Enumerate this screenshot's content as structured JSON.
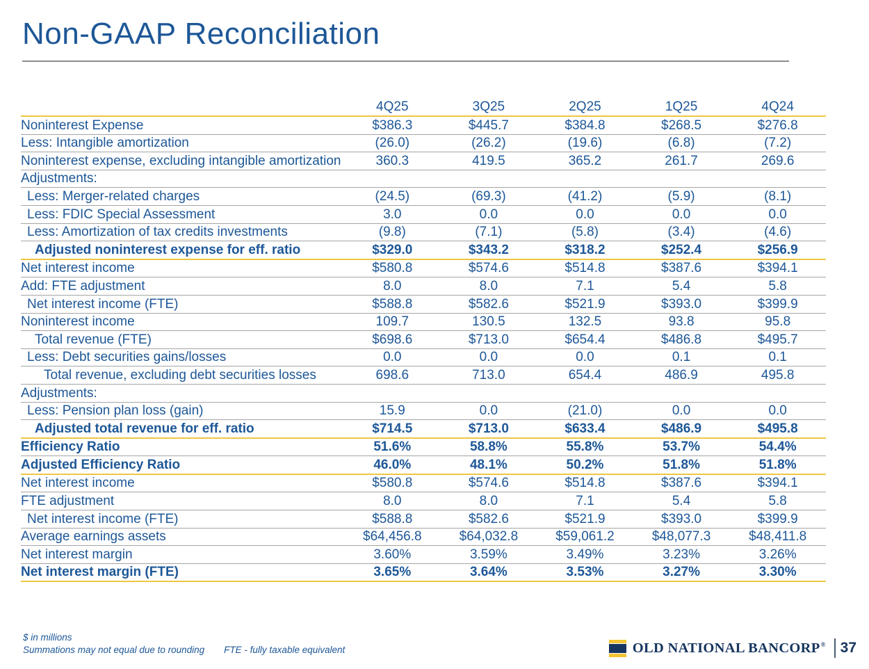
{
  "title": "Non-GAAP Reconciliation",
  "colors": {
    "text_blue": "#1d5797",
    "gold": "#eec643",
    "divider_gray": "#a5a5a5",
    "logo_navy": "#17365f",
    "logo_gold": "#f3c431"
  },
  "table": {
    "columns": [
      "4Q25",
      "3Q25",
      "2Q25",
      "1Q25",
      "4Q24"
    ],
    "rows": [
      {
        "label": "Noninterest Expense",
        "indent": 0,
        "bold": false,
        "rule": "gray",
        "values": [
          "$386.3",
          "$445.7",
          "$384.8",
          "$268.5",
          "$276.8"
        ]
      },
      {
        "label": "Less: Intangible amortization",
        "indent": 0,
        "bold": false,
        "rule": "gray",
        "values": [
          "(26.0)",
          "(26.2)",
          "(19.6)",
          "(6.8)",
          "(7.2)"
        ]
      },
      {
        "label": "Noninterest expense, excluding intangible amortization",
        "indent": 0,
        "bold": false,
        "wrap": true,
        "rule": "gray",
        "values": [
          "360.3",
          "419.5",
          "365.2",
          "261.7",
          "269.6"
        ]
      },
      {
        "label": "Adjustments:",
        "indent": 0,
        "bold": false,
        "rule": "gray",
        "values": [
          "",
          "",
          "",
          "",
          ""
        ]
      },
      {
        "label": "Less: Merger-related charges",
        "indent": 1,
        "bold": false,
        "rule": "gray",
        "values": [
          "(24.5)",
          "(69.3)",
          "(41.2)",
          "(5.9)",
          "(8.1)"
        ]
      },
      {
        "label": "Less: FDIC Special Assessment",
        "indent": 1,
        "bold": false,
        "rule": "gray",
        "values": [
          "3.0",
          "0.0",
          "0.0",
          "0.0",
          "0.0"
        ]
      },
      {
        "label": "Less: Amortization of tax credits investments",
        "indent": 1,
        "bold": false,
        "rule": "gray",
        "values": [
          "(9.8)",
          "(7.1)",
          "(5.8)",
          "(3.4)",
          "(4.6)"
        ]
      },
      {
        "label": "Adjusted noninterest expense for eff. ratio",
        "indent": 2,
        "bold": true,
        "rule": "gold",
        "values": [
          "$329.0",
          "$343.2",
          "$318.2",
          "$252.4",
          "$256.9"
        ]
      },
      {
        "label": "Net interest income",
        "indent": 0,
        "bold": false,
        "rule": "gray",
        "values": [
          "$580.8",
          "$574.6",
          "$514.8",
          "$387.6",
          "$394.1"
        ]
      },
      {
        "label": "Add: FTE adjustment",
        "indent": 0,
        "bold": false,
        "rule": "gray",
        "values": [
          "8.0",
          "8.0",
          "7.1",
          "5.4",
          "5.8"
        ]
      },
      {
        "label": "Net interest income (FTE)",
        "indent": 1,
        "bold": false,
        "rule": "gray",
        "values": [
          "$588.8",
          "$582.6",
          "$521.9",
          "$393.0",
          "$399.9"
        ]
      },
      {
        "label": "Noninterest income",
        "indent": 0,
        "bold": false,
        "rule": "gray",
        "values": [
          "109.7",
          "130.5",
          "132.5",
          "93.8",
          "95.8"
        ]
      },
      {
        "label": "Total revenue (FTE)",
        "indent": 2,
        "bold": false,
        "rule": "gray",
        "values": [
          "$698.6",
          "$713.0",
          "$654.4",
          "$486.8",
          "$495.7"
        ]
      },
      {
        "label": "Less: Debt securities gains/losses",
        "indent": 1,
        "bold": false,
        "rule": "gray",
        "values": [
          "0.0",
          "0.0",
          "0.0",
          "0.1",
          "0.1"
        ]
      },
      {
        "label": "Total revenue, excluding debt securities losses",
        "indent": 3,
        "bold": false,
        "wrap": true,
        "rule": "gray",
        "values": [
          "698.6",
          "713.0",
          "654.4",
          "486.9",
          "495.8"
        ]
      },
      {
        "label": "Adjustments:",
        "indent": 0,
        "bold": false,
        "rule": "gray",
        "values": [
          "",
          "",
          "",
          "",
          ""
        ]
      },
      {
        "label": "Less: Pension plan loss (gain)",
        "indent": 1,
        "bold": false,
        "rule": "gray",
        "values": [
          "15.9",
          "0.0",
          "(21.0)",
          "0.0",
          "0.0"
        ]
      },
      {
        "label": "Adjusted total revenue for eff. ratio",
        "indent": 2,
        "bold": true,
        "rule": "gold",
        "values": [
          "$714.5",
          "$713.0",
          "$633.4",
          "$486.9",
          "$495.8"
        ]
      },
      {
        "label": "Efficiency Ratio",
        "indent": 0,
        "bold": true,
        "rule": "gray",
        "values": [
          "51.6%",
          "58.8%",
          "55.8%",
          "53.7%",
          "54.4%"
        ]
      },
      {
        "label": "Adjusted Efficiency Ratio",
        "indent": 0,
        "bold": true,
        "rule": "gold",
        "values": [
          "46.0%",
          "48.1%",
          "50.2%",
          "51.8%",
          "51.8%"
        ]
      },
      {
        "label": "Net interest income",
        "indent": 0,
        "bold": false,
        "rule": "gray",
        "values": [
          "$580.8",
          "$574.6",
          "$514.8",
          "$387.6",
          "$394.1"
        ]
      },
      {
        "label": "FTE adjustment",
        "indent": 0,
        "bold": false,
        "rule": "gray",
        "values": [
          "8.0",
          "8.0",
          "7.1",
          "5.4",
          "5.8"
        ]
      },
      {
        "label": "Net interest income (FTE)",
        "indent": 1,
        "bold": false,
        "rule": "gray",
        "values": [
          "$588.8",
          "$582.6",
          "$521.9",
          "$393.0",
          "$399.9"
        ]
      },
      {
        "label": "Average earnings assets",
        "indent": 0,
        "bold": false,
        "rule": "gray",
        "values": [
          "$64,456.8",
          "$64,032.8",
          "$59,061.2",
          "$48,077.3",
          "$48,411.8"
        ]
      },
      {
        "label": "Net interest margin",
        "indent": 0,
        "bold": false,
        "rule": "gray",
        "values": [
          "3.60%",
          "3.59%",
          "3.49%",
          "3.23%",
          "3.26%"
        ]
      },
      {
        "label": "Net interest margin (FTE)",
        "indent": 0,
        "bold": true,
        "rule": "gold",
        "values": [
          "3.65%",
          "3.64%",
          "3.53%",
          "3.27%",
          "3.30%"
        ]
      }
    ]
  },
  "footnotes": {
    "units": "$ in millions",
    "rounding": "Summations may not equal due to rounding",
    "fte": "FTE - fully taxable equivalent"
  },
  "brand": {
    "name": "OLD NATIONAL BANCORP",
    "registered": "®",
    "page_number": "37"
  }
}
